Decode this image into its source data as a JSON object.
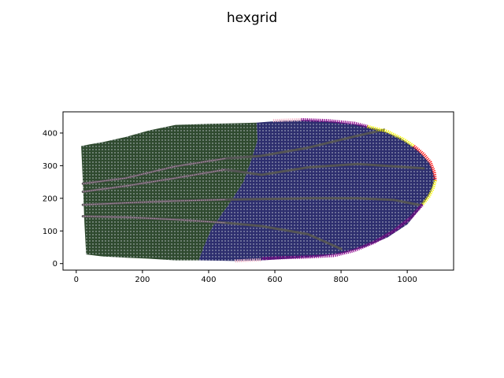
{
  "chart_data": {
    "type": "scatter",
    "title": "hexgrid",
    "xlabel": "",
    "ylabel": "",
    "xlim": [
      -40,
      1140
    ],
    "ylim": [
      -20,
      465
    ],
    "grid": false,
    "x_ticks": [
      0,
      200,
      400,
      600,
      800,
      1000
    ],
    "y_ticks": [
      0,
      100,
      200,
      300,
      400
    ],
    "x_tick_labels": [
      "0",
      "200",
      "400",
      "600",
      "800",
      "1000"
    ],
    "y_tick_labels": [
      "0",
      "100",
      "200",
      "300",
      "400"
    ],
    "colors": {
      "region_green": "#2f4a2f",
      "region_blue": "#2d2e6e",
      "vein": "#555555",
      "vein_pink": "#b892b0",
      "boundary_purple": "#8b008b",
      "boundary_yellow": "#f3f300",
      "boundary_red": "#ff1010",
      "boundary_pink": "#f2b6c8",
      "dots": "#c9ced6"
    },
    "regions": [
      {
        "name": "proximal-region",
        "color": "#2f4a2f",
        "outline": [
          [
            15,
            360
          ],
          [
            40,
            365
          ],
          [
            80,
            372
          ],
          [
            150,
            388
          ],
          [
            220,
            408
          ],
          [
            300,
            425
          ],
          [
            400,
            428
          ],
          [
            480,
            430
          ],
          [
            545,
            432
          ],
          [
            548,
            380
          ],
          [
            530,
            320
          ],
          [
            505,
            250
          ],
          [
            460,
            180
          ],
          [
            410,
            110
          ],
          [
            385,
            50
          ],
          [
            370,
            10
          ],
          [
            300,
            10
          ],
          [
            220,
            15
          ],
          [
            150,
            18
          ],
          [
            80,
            22
          ],
          [
            30,
            28
          ],
          [
            25,
            120
          ],
          [
            20,
            250
          ]
        ]
      },
      {
        "name": "distal-region",
        "color": "#2d2e6e",
        "outline": [
          [
            545,
            432
          ],
          [
            620,
            438
          ],
          [
            700,
            440
          ],
          [
            780,
            435
          ],
          [
            860,
            425
          ],
          [
            920,
            410
          ],
          [
            980,
            385
          ],
          [
            1030,
            350
          ],
          [
            1070,
            305
          ],
          [
            1085,
            260
          ],
          [
            1070,
            215
          ],
          [
            1040,
            170
          ],
          [
            1000,
            120
          ],
          [
            940,
            80
          ],
          [
            870,
            50
          ],
          [
            800,
            30
          ],
          [
            720,
            20
          ],
          [
            640,
            15
          ],
          [
            560,
            10
          ],
          [
            480,
            8
          ],
          [
            370,
            10
          ],
          [
            385,
            50
          ],
          [
            410,
            110
          ],
          [
            460,
            180
          ],
          [
            505,
            250
          ],
          [
            530,
            320
          ],
          [
            548,
            380
          ]
        ]
      }
    ],
    "veins": [
      {
        "name": "vein-1",
        "points": [
          [
            20,
            245
          ],
          [
            150,
            262
          ],
          [
            300,
            298
          ],
          [
            450,
            322
          ],
          [
            560,
            330
          ],
          [
            700,
            355
          ],
          [
            850,
            392
          ],
          [
            930,
            410
          ]
        ]
      },
      {
        "name": "vein-2",
        "points": [
          [
            20,
            220
          ],
          [
            150,
            238
          ],
          [
            300,
            262
          ],
          [
            450,
            288
          ],
          [
            560,
            272
          ],
          [
            700,
            295
          ],
          [
            850,
            305
          ],
          [
            960,
            298
          ],
          [
            1050,
            292
          ]
        ]
      },
      {
        "name": "vein-3",
        "points": [
          [
            20,
            180
          ],
          [
            150,
            186
          ],
          [
            300,
            192
          ],
          [
            450,
            196
          ],
          [
            560,
            198
          ],
          [
            700,
            200
          ],
          [
            850,
            200
          ],
          [
            960,
            195
          ],
          [
            1035,
            180
          ]
        ]
      },
      {
        "name": "vein-4",
        "points": [
          [
            20,
            145
          ],
          [
            150,
            142
          ],
          [
            300,
            135
          ],
          [
            450,
            125
          ],
          [
            560,
            115
          ],
          [
            700,
            90
          ],
          [
            800,
            45
          ]
        ]
      }
    ],
    "boundary_segments": [
      {
        "name": "boundary-pink-top",
        "color": "#f2b6c8",
        "points": [
          [
            595,
            438
          ],
          [
            680,
            441
          ]
        ]
      },
      {
        "name": "boundary-purple-top",
        "color": "#8b008b",
        "points": [
          [
            680,
            441
          ],
          [
            760,
            438
          ],
          [
            840,
            430
          ],
          [
            880,
            420
          ]
        ]
      },
      {
        "name": "boundary-yellow-top",
        "color": "#f3f300",
        "points": [
          [
            880,
            420
          ],
          [
            940,
            405
          ],
          [
            990,
            380
          ],
          [
            1020,
            360
          ]
        ]
      },
      {
        "name": "boundary-red",
        "color": "#ff1010",
        "points": [
          [
            1020,
            360
          ],
          [
            1050,
            335
          ],
          [
            1070,
            310
          ],
          [
            1082,
            280
          ],
          [
            1085,
            255
          ]
        ]
      },
      {
        "name": "boundary-yellow-bottom",
        "color": "#f3f300",
        "points": [
          [
            1085,
            255
          ],
          [
            1078,
            230
          ],
          [
            1065,
            205
          ],
          [
            1045,
            180
          ]
        ]
      },
      {
        "name": "boundary-purple-bottom",
        "color": "#8b008b",
        "points": [
          [
            1045,
            180
          ],
          [
            1010,
            140
          ],
          [
            960,
            100
          ],
          [
            900,
            65
          ],
          [
            840,
            40
          ],
          [
            780,
            25
          ],
          [
            700,
            20
          ],
          [
            620,
            18
          ],
          [
            560,
            15
          ]
        ]
      },
      {
        "name": "boundary-pink-bottom",
        "color": "#f2b6c8",
        "points": [
          [
            480,
            8
          ],
          [
            560,
            12
          ]
        ]
      }
    ]
  }
}
